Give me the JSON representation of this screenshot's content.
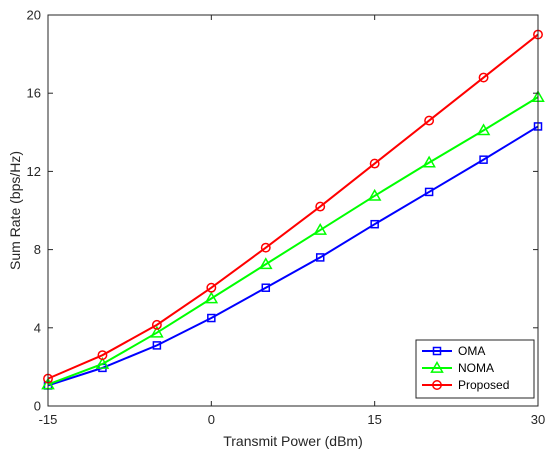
{
  "chart_data": {
    "type": "line",
    "title": "",
    "xlabel": "Transmit Power (dBm)",
    "ylabel": "Sum Rate (bps/Hz)",
    "xlim": [
      -15,
      30
    ],
    "ylim": [
      0,
      20
    ],
    "xticks": [
      -15,
      0,
      15,
      30
    ],
    "yticks": [
      0,
      4,
      8,
      12,
      16,
      20
    ],
    "grid": false,
    "legend_position": "bottom-right",
    "x": [
      -15,
      -10,
      -5,
      0,
      5,
      10,
      15,
      20,
      25,
      30
    ],
    "series": [
      {
        "name": "OMA",
        "marker": "square",
        "color": "#0000ff",
        "values": [
          1.05,
          1.95,
          3.1,
          4.5,
          6.05,
          7.6,
          9.3,
          10.95,
          12.6,
          14.3
        ]
      },
      {
        "name": "NOMA",
        "marker": "triangle",
        "color": "#00ff00",
        "values": [
          1.1,
          2.15,
          3.75,
          5.5,
          7.25,
          9.0,
          10.75,
          12.45,
          14.1,
          15.8
        ]
      },
      {
        "name": "Proposed",
        "marker": "circle",
        "color": "#ff0000",
        "values": [
          1.4,
          2.6,
          4.15,
          6.05,
          8.1,
          10.2,
          12.4,
          14.6,
          16.8,
          19.0
        ]
      }
    ]
  }
}
